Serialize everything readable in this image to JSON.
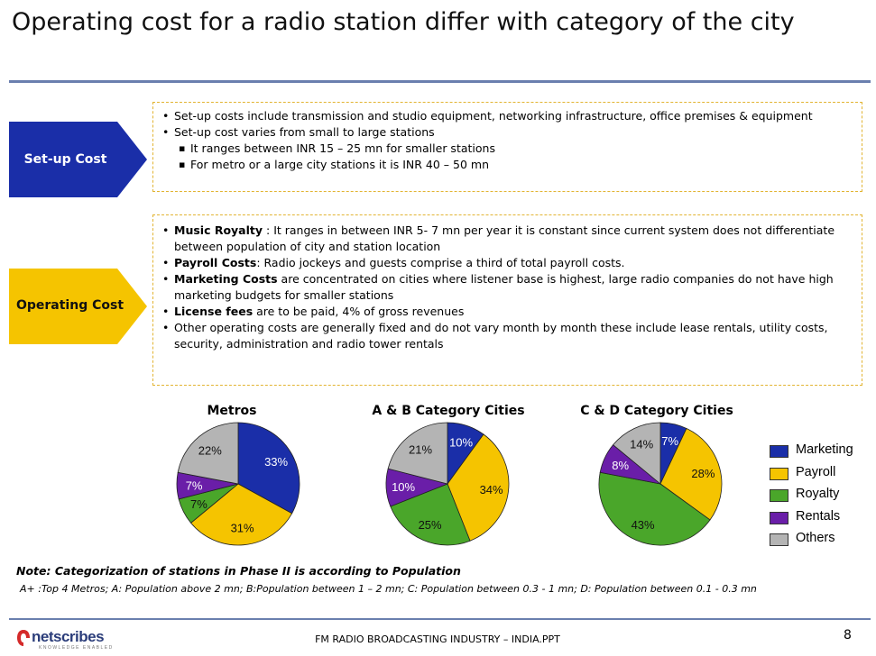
{
  "slide": {
    "title": "Operating cost for a radio station differ with category of the city"
  },
  "setup": {
    "label": "Set-up Cost",
    "color": "#1a2ea8",
    "bullets": [
      {
        "level": 1,
        "text": "Set-up costs include transmission and studio equipment, networking infrastructure, office premises & equipment"
      },
      {
        "level": 1,
        "text": "Set-up cost varies from small to large stations"
      },
      {
        "level": 2,
        "text": "It ranges between INR 15 – 25 mn for smaller stations"
      },
      {
        "level": 2,
        "text": "For metro or a large city stations it is INR 40 – 50 mn"
      }
    ]
  },
  "operating": {
    "label": "Operating Cost",
    "color": "#f5c400",
    "bullets": [
      {
        "bold": "Music Royalty",
        "text": " :  It ranges in between INR 5- 7 mn per year it is constant since current system does not differentiate between population of city and station location"
      },
      {
        "bold": "Payroll Costs",
        "text": ": Radio jockeys and guests comprise a third of total payroll costs."
      },
      {
        "bold": "Marketing Costs",
        "text": " are concentrated on cities where listener base is highest, large radio companies do not have high marketing budgets for smaller stations"
      },
      {
        "bold": "License fees",
        "text": " are to be paid, 4% of gross revenues"
      },
      {
        "bold": "",
        "text": "Other operating costs are generally fixed and do not vary month by month these include lease rentals, utility costs, security, administration and radio tower rentals"
      }
    ]
  },
  "chart_data": {
    "type": "pie",
    "legend_position": "right",
    "series_names": [
      "Marketing",
      "Payroll",
      "Royalty",
      "Rentals",
      "Others"
    ],
    "colors": [
      "#1a2ea8",
      "#f5c400",
      "#4aa62a",
      "#6a1ea8",
      "#b4b4b4"
    ],
    "charts": [
      {
        "title": "Metros",
        "labels": [
          "33%",
          "31%",
          "7%",
          "7%",
          "22%"
        ],
        "values": [
          33,
          31,
          7,
          7,
          22
        ]
      },
      {
        "title": "A & B Category Cities",
        "labels": [
          "10%",
          "34%",
          "25%",
          "10%",
          "21%"
        ],
        "values": [
          10,
          34,
          25,
          10,
          21
        ]
      },
      {
        "title": "C & D Category Cities",
        "labels": [
          "7%",
          "28%",
          "43%",
          "8%",
          "14%"
        ],
        "values": [
          7,
          28,
          43,
          8,
          14
        ]
      }
    ]
  },
  "notes": {
    "note": "Note: Categorization of stations in Phase II is according to Population",
    "detail": "A+ :Top 4 Metros;  A: Population above 2 mn; B:Population between 1 – 2 mn;  C: Population between 0.3  - 1 mn; D: Population between 0.1  - 0.3 mn"
  },
  "footer": {
    "logo": "netscribes",
    "logo_tagline": "KNOWLEDGE ENABLED",
    "center": "FM RADIO BROADCASTING INDUSTRY – INDIA.PPT",
    "page": "8"
  }
}
